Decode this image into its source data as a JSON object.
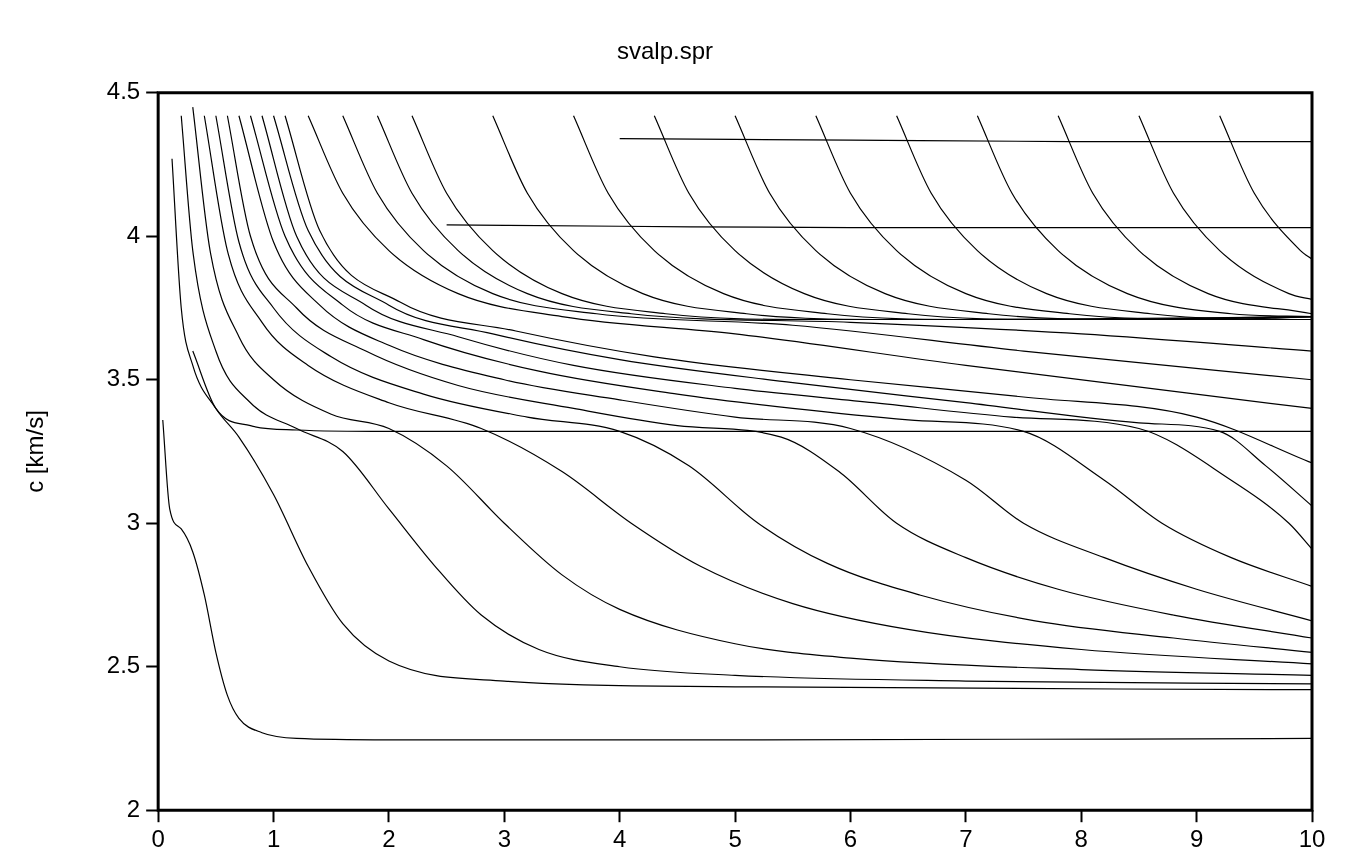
{
  "chart_data": {
    "type": "line",
    "title": "svalp.spr",
    "ylabel": "c [km/s]",
    "xlim": [
      0,
      10
    ],
    "ylim": [
      2,
      4.5
    ],
    "xticks": [
      0,
      1,
      2,
      3,
      4,
      5,
      6,
      7,
      8,
      9,
      10
    ],
    "yticks": [
      2,
      {
        "value": 2.5,
        "label": "2.5"
      },
      3,
      {
        "value": 3.5,
        "label": "3.5"
      },
      4,
      {
        "value": 4.5,
        "label": "4.5"
      }
    ],
    "marker": "none",
    "line_style": "solid",
    "legend": false,
    "series": [
      {
        "color": "#000000",
        "x": [
          0.04,
          0.1,
          0.2,
          0.3,
          0.4,
          0.5,
          0.6,
          0.7,
          0.9,
          1.2,
          2,
          5,
          10
        ],
        "values": [
          3.36,
          3.05,
          2.98,
          2.9,
          2.75,
          2.55,
          2.4,
          2.32,
          2.27,
          2.25,
          2.245,
          2.245,
          2.25
        ]
      },
      {
        "color": "#000000",
        "x": [
          0.12,
          0.2,
          0.3,
          0.5,
          0.7,
          1.0,
          1.3,
          1.6,
          2,
          3,
          5,
          10
        ],
        "values": [
          4.27,
          3.75,
          3.55,
          3.4,
          3.3,
          3.1,
          2.85,
          2.65,
          2.52,
          2.45,
          2.43,
          2.42
        ]
      },
      {
        "color": "#000000",
        "x": [
          0.2,
          0.3,
          0.5,
          0.8,
          1.2,
          1.6,
          2.0,
          2.4,
          2.8,
          3.3,
          4,
          5,
          7,
          10
        ],
        "values": [
          4.42,
          3.95,
          3.6,
          3.42,
          3.33,
          3.25,
          3.05,
          2.85,
          2.68,
          2.56,
          2.5,
          2.47,
          2.45,
          2.44
        ]
      },
      {
        "color": "#000000",
        "x": [
          0.3,
          0.45,
          0.7,
          1.0,
          1.5,
          2.0,
          2.5,
          3.0,
          3.5,
          4,
          5,
          6,
          8,
          10
        ],
        "values": [
          4.45,
          3.95,
          3.65,
          3.5,
          3.38,
          3.33,
          3.2,
          3.0,
          2.82,
          2.7,
          2.58,
          2.53,
          2.49,
          2.47
        ]
      },
      {
        "color": "#000000",
        "x": [
          0.4,
          0.6,
          0.9,
          1.3,
          2.0,
          2.8,
          3.5,
          4.1,
          4.7,
          5.5,
          6.5,
          8,
          10
        ],
        "values": [
          4.42,
          3.95,
          3.7,
          3.55,
          3.42,
          3.33,
          3.18,
          3.0,
          2.85,
          2.72,
          2.63,
          2.56,
          2.51
        ]
      },
      {
        "color": "#000000",
        "x": [
          0.5,
          0.7,
          1.0,
          1.5,
          2.3,
          3.2,
          4.0,
          4.6,
          5.2,
          5.8,
          6.6,
          7.6,
          8.8,
          10
        ],
        "values": [
          4.42,
          3.98,
          3.75,
          3.58,
          3.45,
          3.37,
          3.32,
          3.2,
          3.0,
          2.86,
          2.75,
          2.66,
          2.6,
          2.55
        ]
      },
      {
        "color": "#000000",
        "x": [
          0.6,
          0.8,
          1.2,
          1.8,
          2.6,
          3.6,
          4.5,
          5.4,
          5.9,
          6.4,
          7.0,
          7.8,
          8.8,
          10
        ],
        "values": [
          4.42,
          4.0,
          3.75,
          3.6,
          3.48,
          3.4,
          3.34,
          3.3,
          3.18,
          3.0,
          2.88,
          2.77,
          2.68,
          2.6
        ]
      },
      {
        "color": "#000000",
        "x": [
          0.7,
          1.0,
          1.4,
          2.0,
          3.0,
          4.0,
          5.0,
          6.0,
          7.0,
          7.5,
          8.2,
          9,
          10
        ],
        "values": [
          4.42,
          3.98,
          3.76,
          3.62,
          3.5,
          3.43,
          3.37,
          3.33,
          3.15,
          3.0,
          2.88,
          2.77,
          2.66
        ]
      },
      {
        "color": "#000000",
        "x": [
          0.8,
          1.1,
          1.6,
          2.3,
          3.3,
          4.5,
          5.5,
          6.5,
          7.5,
          8.2,
          8.7,
          9.3,
          10
        ],
        "values": [
          4.42,
          4.0,
          3.76,
          3.64,
          3.53,
          3.45,
          3.4,
          3.36,
          3.32,
          3.15,
          3.0,
          2.88,
          2.78
        ]
      },
      {
        "color": "#000000",
        "x": [
          0.9,
          1.2,
          1.8,
          2.6,
          3.6,
          5,
          6.2,
          7.4,
          8.5,
          9.3,
          9.8,
          10
        ],
        "values": [
          4.42,
          4.0,
          3.76,
          3.65,
          3.55,
          3.47,
          3.42,
          3.37,
          3.33,
          3.15,
          3.0,
          2.91
        ]
      },
      {
        "color": "#000000",
        "x": [
          1.0,
          1.3,
          2.0,
          2.9,
          4,
          5.5,
          7,
          8.5,
          9.2,
          9.6,
          10
        ],
        "values": [
          4.42,
          4.02,
          3.76,
          3.66,
          3.57,
          3.49,
          3.42,
          3.35,
          3.32,
          3.2,
          3.06
        ]
      },
      {
        "color": "#000000",
        "x": [
          1.1,
          1.4,
          2.1,
          3.1,
          4.3,
          6,
          7.5,
          9,
          10
        ],
        "values": [
          4.42,
          4.02,
          3.77,
          3.67,
          3.58,
          3.5,
          3.44,
          3.37,
          3.21
        ]
      },
      {
        "color": "#000000",
        "x": [
          0.3,
          0.5,
          0.8,
          1.2,
          2,
          5,
          10
        ],
        "values": [
          3.6,
          3.4,
          3.34,
          3.325,
          3.32,
          3.32,
          3.32
        ]
      },
      {
        "color": "#000000",
        "x": [
          1.3,
          1.6,
          2.0,
          2.6,
          3.5,
          5,
          7,
          10
        ],
        "values": [
          4.42,
          4.15,
          3.95,
          3.8,
          3.72,
          3.66,
          3.55,
          3.4
        ]
      },
      {
        "color": "#000000",
        "x": [
          1.6,
          1.9,
          2.3,
          2.9,
          3.8,
          5.5,
          7.5,
          10
        ],
        "values": [
          4.42,
          4.15,
          3.95,
          3.8,
          3.73,
          3.69,
          3.6,
          3.5
        ]
      },
      {
        "color": "#000000",
        "x": [
          1.9,
          2.2,
          2.6,
          3.2,
          4.1,
          6,
          8,
          10
        ],
        "values": [
          4.42,
          4.15,
          3.95,
          3.8,
          3.73,
          3.7,
          3.66,
          3.6
        ]
      },
      {
        "color": "#000000",
        "x": [
          2.2,
          2.5,
          2.9,
          3.5,
          4.4,
          5.7,
          10
        ],
        "values": [
          4.42,
          4.15,
          3.95,
          3.8,
          3.73,
          3.71,
          3.71
        ]
      },
      {
        "color": "#000000",
        "x": [
          2.9,
          3.2,
          3.6,
          4.2,
          5.1,
          6.4,
          10
        ],
        "values": [
          4.42,
          4.15,
          3.95,
          3.8,
          3.73,
          3.71,
          3.71
        ]
      },
      {
        "color": "#000000",
        "x": [
          3.6,
          3.9,
          4.3,
          4.9,
          5.8,
          7.1,
          10
        ],
        "values": [
          4.42,
          4.15,
          3.95,
          3.8,
          3.73,
          3.71,
          3.72
        ]
      },
      {
        "color": "#000000",
        "x": [
          4.3,
          4.6,
          5.0,
          5.6,
          6.5,
          7.8,
          10
        ],
        "values": [
          4.42,
          4.15,
          3.95,
          3.8,
          3.73,
          3.71,
          3.72
        ]
      },
      {
        "color": "#000000",
        "x": [
          5.0,
          5.3,
          5.7,
          6.3,
          7.2,
          8.5,
          10
        ],
        "values": [
          4.42,
          4.15,
          3.95,
          3.8,
          3.73,
          3.71,
          3.72
        ]
      },
      {
        "color": "#000000",
        "x": [
          5.7,
          6.0,
          6.4,
          7.0,
          7.9,
          9.2,
          10
        ],
        "values": [
          4.42,
          4.15,
          3.95,
          3.8,
          3.73,
          3.71,
          3.72
        ]
      },
      {
        "color": "#000000",
        "x": [
          6.4,
          6.7,
          7.1,
          7.7,
          8.6,
          9.9,
          10
        ],
        "values": [
          4.42,
          4.15,
          3.95,
          3.8,
          3.73,
          3.71,
          3.71
        ]
      },
      {
        "color": "#000000",
        "x": [
          7.1,
          7.4,
          7.8,
          8.4,
          9.3,
          10
        ],
        "values": [
          4.42,
          4.15,
          3.95,
          3.8,
          3.73,
          3.72
        ]
      },
      {
        "color": "#000000",
        "x": [
          7.8,
          8.1,
          8.5,
          9.1,
          10
        ],
        "values": [
          4.42,
          4.15,
          3.95,
          3.8,
          3.73
        ]
      },
      {
        "color": "#000000",
        "x": [
          8.5,
          8.8,
          9.2,
          9.8,
          10
        ],
        "values": [
          4.42,
          4.15,
          3.95,
          3.8,
          3.78
        ]
      },
      {
        "color": "#000000",
        "x": [
          9.2,
          9.5,
          9.9,
          10
        ],
        "values": [
          4.42,
          4.15,
          3.95,
          3.92
        ]
      },
      {
        "color": "#000000",
        "x": [
          2.5,
          4,
          6,
          8,
          10
        ],
        "values": [
          4.04,
          4.035,
          4.03,
          4.03,
          4.03
        ]
      },
      {
        "color": "#000000",
        "x": [
          4,
          6,
          8,
          10
        ],
        "values": [
          4.34,
          4.335,
          4.33,
          4.33
        ]
      }
    ]
  }
}
